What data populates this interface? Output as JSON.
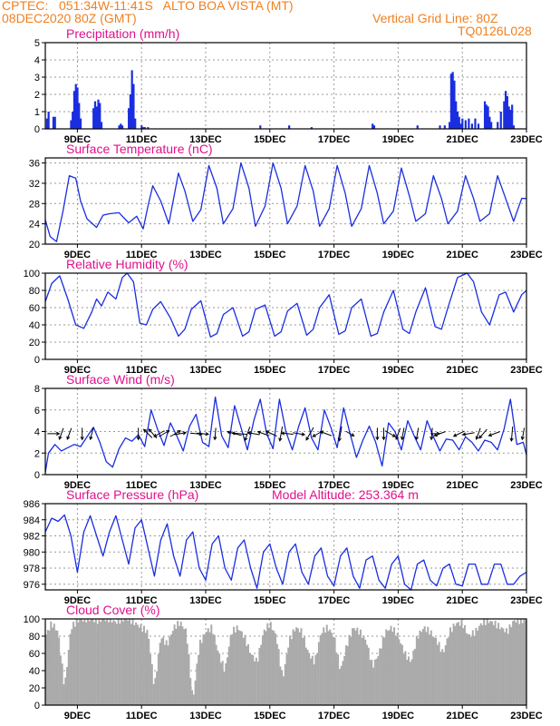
{
  "header": {
    "line1": "CPTEC:   051:34W-11:41S   ALTO BOA VISTA (MT)",
    "line2": "08DEC2020 80Z (GMT)",
    "grid_note": "Vertical Grid Line: 80Z",
    "code": "TQ0126L028",
    "model_altitude": "Model Altitude: 253.364 m"
  },
  "colors": {
    "header": "#f08020",
    "title": "#e0108c",
    "line": "#1a2ee0",
    "cloud": "#aaaaaa",
    "grid": "#999999"
  },
  "x_axis": {
    "range": [
      8,
      23
    ],
    "ticks": [
      9,
      11,
      13,
      15,
      17,
      19,
      21,
      23
    ],
    "tick_labels": [
      "9DEC",
      "11DEC",
      "13DEC",
      "15DEC",
      "17DEC",
      "19DEC",
      "21DEC",
      "23DEC"
    ]
  },
  "chart_data": [
    {
      "type": "bar",
      "title": "Precipitation (mm/h)",
      "ylim": [
        0,
        5
      ],
      "yticks": [
        0,
        1,
        2,
        3,
        4,
        5
      ],
      "x": [
        8.05,
        8.1,
        8.25,
        8.3,
        8.8,
        8.85,
        8.9,
        8.95,
        9.0,
        9.05,
        9.1,
        9.5,
        9.55,
        9.6,
        9.65,
        9.7,
        9.75,
        10.3,
        10.35,
        10.4,
        10.6,
        10.65,
        10.7,
        10.75,
        10.8,
        11.0,
        11.05,
        11.1,
        11.2,
        14.7,
        15.6,
        16.3,
        18.2,
        18.25,
        19.6,
        20.3,
        20.45,
        20.6,
        20.65,
        20.7,
        20.75,
        20.8,
        20.85,
        20.9,
        20.95,
        21.0,
        21.1,
        21.2,
        21.3,
        21.4,
        21.5,
        21.7,
        21.75,
        21.8,
        21.85,
        21.9,
        22.1,
        22.2,
        22.3,
        22.35,
        22.4,
        22.45,
        22.5,
        22.55,
        22.6
      ],
      "values": [
        0.6,
        1.0,
        0.7,
        0.7,
        0.5,
        1.0,
        2.2,
        2.6,
        2.4,
        1.5,
        0.6,
        1.2,
        1.6,
        1.3,
        1.7,
        1.5,
        0.4,
        0.2,
        0.3,
        0.2,
        1.2,
        2.0,
        3.4,
        2.6,
        0.6,
        0.2,
        0.1,
        0.1,
        0.1,
        0.2,
        0.2,
        0.1,
        0.3,
        0.2,
        0.2,
        0.2,
        0.2,
        0.4,
        3.2,
        3.3,
        2.8,
        1.6,
        1.0,
        0.7,
        0.3,
        0.6,
        0.5,
        0.6,
        0.3,
        0.6,
        0.3,
        1.6,
        1.4,
        1.3,
        0.7,
        0.4,
        0.4,
        1.0,
        1.6,
        2.2,
        1.9,
        1.3,
        1.1,
        1.4,
        0.2
      ]
    },
    {
      "type": "line",
      "title": "Surface Temperature (nC)",
      "ylim": [
        20,
        37
      ],
      "yticks": [
        20,
        24,
        28,
        32,
        36
      ],
      "x": [
        8.0,
        8.15,
        8.35,
        8.55,
        8.75,
        8.95,
        9.1,
        9.3,
        9.6,
        9.8,
        10.0,
        10.3,
        10.6,
        10.85,
        11.05,
        11.2,
        11.35,
        11.6,
        11.85,
        12.15,
        12.35,
        12.6,
        12.85,
        13.1,
        13.35,
        13.55,
        13.85,
        14.1,
        14.35,
        14.55,
        14.85,
        15.1,
        15.35,
        15.55,
        15.85,
        16.1,
        16.35,
        16.55,
        16.85,
        17.1,
        17.35,
        17.55,
        17.85,
        18.1,
        18.35,
        18.55,
        18.85,
        19.1,
        19.35,
        19.55,
        19.85,
        20.1,
        20.35,
        20.55,
        20.85,
        21.1,
        21.35,
        21.55,
        21.85,
        22.1,
        22.35,
        22.6,
        22.85,
        23.0
      ],
      "values": [
        24.8,
        21.5,
        20.5,
        26.5,
        33.5,
        33.0,
        28.5,
        25.0,
        23.3,
        25.7,
        26.0,
        26.2,
        24.2,
        25.5,
        23.0,
        27.5,
        31.5,
        28.5,
        24.0,
        34.0,
        30.5,
        24.5,
        26.8,
        35.5,
        31.0,
        24.0,
        27.0,
        36.0,
        31.0,
        23.5,
        27.5,
        36.0,
        31.0,
        24.0,
        27.5,
        35.5,
        30.5,
        23.5,
        27.0,
        35.5,
        30.0,
        23.5,
        27.0,
        35.5,
        30.0,
        24.0,
        26.5,
        35.0,
        29.5,
        24.5,
        26.0,
        33.5,
        29.0,
        24.0,
        26.5,
        33.5,
        29.0,
        24.5,
        26.0,
        33.5,
        29.0,
        24.5,
        29.0,
        29.0
      ]
    },
    {
      "type": "line",
      "title": "Relative Humidity (%)",
      "ylim": [
        0,
        100
      ],
      "yticks": [
        0,
        20,
        40,
        60,
        80,
        100
      ],
      "x": [
        8.0,
        8.2,
        8.45,
        8.7,
        8.95,
        9.2,
        9.45,
        9.6,
        9.75,
        9.95,
        10.2,
        10.4,
        10.55,
        10.75,
        10.95,
        11.15,
        11.35,
        11.6,
        11.9,
        12.15,
        12.35,
        12.55,
        12.85,
        13.15,
        13.35,
        13.55,
        13.85,
        14.15,
        14.35,
        14.55,
        14.85,
        15.15,
        15.35,
        15.55,
        15.85,
        16.15,
        16.35,
        16.55,
        16.85,
        17.15,
        17.35,
        17.55,
        17.85,
        18.15,
        18.35,
        18.55,
        18.85,
        19.15,
        19.35,
        19.55,
        19.85,
        20.15,
        20.35,
        20.55,
        20.85,
        21.15,
        21.35,
        21.6,
        21.85,
        22.15,
        22.35,
        22.6,
        22.85,
        23.0
      ],
      "values": [
        67,
        88,
        97,
        70,
        40,
        36,
        55,
        70,
        62,
        78,
        70,
        95,
        100,
        90,
        42,
        40,
        58,
        67,
        48,
        27,
        35,
        58,
        68,
        26,
        30,
        52,
        60,
        27,
        32,
        58,
        63,
        27,
        32,
        56,
        65,
        28,
        35,
        60,
        75,
        29,
        33,
        60,
        70,
        27,
        30,
        55,
        80,
        35,
        30,
        55,
        83,
        38,
        35,
        60,
        95,
        100,
        90,
        55,
        40,
        75,
        78,
        55,
        75,
        80
      ]
    },
    {
      "type": "line",
      "title": "Surface Wind (m/s)",
      "ylim": [
        0,
        8
      ],
      "yticks": [
        0,
        2,
        4,
        6,
        8
      ],
      "x": [
        8.0,
        8.1,
        8.3,
        8.5,
        8.7,
        8.9,
        9.1,
        9.3,
        9.5,
        9.7,
        9.9,
        10.1,
        10.3,
        10.5,
        10.7,
        10.9,
        11.1,
        11.3,
        11.5,
        11.7,
        11.9,
        12.1,
        12.3,
        12.5,
        12.7,
        12.9,
        13.1,
        13.3,
        13.5,
        13.7,
        13.9,
        14.1,
        14.3,
        14.5,
        14.7,
        14.9,
        15.1,
        15.3,
        15.5,
        15.7,
        15.9,
        16.1,
        16.3,
        16.5,
        16.7,
        16.9,
        17.1,
        17.3,
        17.5,
        17.7,
        17.9,
        18.1,
        18.3,
        18.5,
        18.7,
        18.9,
        19.1,
        19.3,
        19.5,
        19.7,
        19.9,
        20.1,
        20.3,
        20.5,
        20.7,
        20.9,
        21.1,
        21.3,
        21.5,
        21.7,
        21.9,
        22.1,
        22.3,
        22.5,
        22.7,
        22.9,
        23.0
      ],
      "values": [
        0.2,
        2.0,
        2.8,
        2.2,
        2.5,
        2.8,
        2.6,
        3.5,
        4.4,
        3.0,
        1.2,
        0.7,
        2.4,
        3.4,
        3.1,
        3.7,
        2.6,
        6.0,
        4.2,
        2.7,
        4.8,
        3.6,
        2.2,
        4.5,
        5.6,
        3.0,
        2.6,
        7.2,
        3.6,
        2.5,
        6.4,
        4.4,
        2.3,
        5.0,
        7.0,
        3.8,
        2.4,
        7.0,
        4.0,
        2.3,
        4.5,
        6.2,
        3.4,
        2.3,
        6.0,
        4.4,
        2.5,
        6.2,
        3.8,
        1.6,
        3.2,
        4.5,
        3.0,
        0.8,
        4.8,
        4.0,
        2.3,
        5.0,
        3.6,
        2.3,
        5.0,
        3.5,
        2.2,
        3.3,
        3.2,
        2.3,
        3.5,
        3.0,
        2.2,
        3.2,
        3.0,
        2.3,
        4.2,
        7.0,
        2.8,
        3.0,
        1.8
      ]
    },
    {
      "type": "line",
      "title": "Surface Pressure (hPa)",
      "ylim": [
        975.3,
        986
      ],
      "yticks": [
        976,
        978,
        980,
        982,
        984,
        986
      ],
      "x": [
        8.0,
        8.2,
        8.4,
        8.6,
        8.8,
        9.0,
        9.2,
        9.4,
        9.6,
        9.8,
        10.0,
        10.2,
        10.4,
        10.6,
        10.8,
        11.0,
        11.2,
        11.4,
        11.6,
        11.8,
        12.0,
        12.2,
        12.4,
        12.6,
        12.8,
        13.0,
        13.2,
        13.4,
        13.6,
        13.8,
        14.0,
        14.2,
        14.4,
        14.6,
        14.8,
        15.0,
        15.2,
        15.4,
        15.6,
        15.8,
        16.0,
        16.2,
        16.4,
        16.6,
        16.8,
        17.0,
        17.2,
        17.4,
        17.6,
        17.8,
        18.0,
        18.2,
        18.4,
        18.6,
        18.8,
        19.0,
        19.2,
        19.4,
        19.6,
        19.8,
        20.0,
        20.2,
        20.4,
        20.6,
        20.8,
        21.0,
        21.2,
        21.4,
        21.6,
        21.8,
        22.0,
        22.2,
        22.4,
        22.6,
        22.8,
        23.0
      ],
      "values": [
        982.5,
        984.2,
        983.8,
        984.6,
        982.0,
        977.5,
        982.5,
        984.5,
        982.0,
        979.5,
        982.5,
        984.5,
        981.5,
        978.5,
        983.0,
        984.0,
        980.5,
        977.0,
        981.5,
        983.5,
        979.5,
        977.0,
        981.5,
        982.5,
        978.0,
        976.5,
        981.0,
        982.0,
        978.0,
        976.5,
        980.5,
        981.5,
        978.0,
        975.5,
        980.0,
        981.0,
        978.0,
        976.0,
        980.0,
        981.0,
        977.5,
        976.0,
        979.5,
        980.5,
        977.0,
        975.8,
        979.5,
        980.5,
        977.0,
        975.5,
        979.0,
        979.5,
        976.5,
        975.5,
        978.5,
        979.5,
        976.0,
        975.3,
        978.5,
        979.0,
        976.5,
        975.8,
        978.0,
        978.5,
        976.0,
        975.8,
        978.5,
        978.5,
        976.0,
        976.0,
        978.5,
        978.5,
        976.0,
        976.0,
        977.0,
        977.5
      ]
    },
    {
      "type": "area",
      "title": "Cloud Cover (%)",
      "ylim": [
        0,
        100
      ],
      "yticks": [
        0,
        20,
        40,
        60,
        80,
        100
      ],
      "x": [
        8.0,
        8.2,
        8.4,
        8.6,
        8.8,
        9.0,
        9.2,
        9.4,
        9.6,
        9.8,
        10.0,
        10.2,
        10.4,
        10.6,
        10.8,
        11.0,
        11.2,
        11.4,
        11.6,
        11.8,
        12.0,
        12.2,
        12.4,
        12.6,
        12.8,
        13.0,
        13.2,
        13.4,
        13.6,
        13.8,
        14.0,
        14.2,
        14.4,
        14.6,
        14.8,
        15.0,
        15.2,
        15.4,
        15.6,
        15.8,
        16.0,
        16.2,
        16.4,
        16.6,
        16.8,
        17.0,
        17.2,
        17.4,
        17.6,
        17.8,
        18.0,
        18.2,
        18.4,
        18.6,
        18.8,
        19.0,
        19.2,
        19.4,
        19.6,
        19.8,
        20.0,
        20.2,
        20.4,
        20.6,
        20.8,
        21.0,
        21.2,
        21.4,
        21.6,
        21.8,
        22.0,
        22.2,
        22.4,
        22.6,
        22.8,
        23.0
      ],
      "values": [
        80,
        95,
        85,
        20,
        90,
        98,
        100,
        100,
        98,
        100,
        100,
        96,
        100,
        100,
        95,
        90,
        85,
        20,
        80,
        70,
        90,
        96,
        85,
        5,
        70,
        85,
        90,
        60,
        40,
        85,
        90,
        80,
        60,
        50,
        85,
        95,
        80,
        30,
        75,
        90,
        85,
        60,
        50,
        85,
        90,
        80,
        40,
        70,
        90,
        85,
        75,
        45,
        60,
        85,
        90,
        80,
        60,
        50,
        80,
        90,
        85,
        75,
        60,
        85,
        95,
        95,
        80,
        85,
        95,
        98,
        95,
        90,
        85,
        98,
        98,
        98
      ]
    }
  ],
  "wind_arrows": [
    {
      "x": 8.25,
      "dir": 90,
      "speed": 3
    },
    {
      "x": 8.5,
      "dir": 200,
      "speed": 3
    },
    {
      "x": 8.75,
      "dir": 200,
      "speed": 3
    },
    {
      "x": 9.15,
      "dir": 180,
      "speed": 3
    },
    {
      "x": 9.45,
      "dir": 195,
      "speed": 3
    },
    {
      "x": 10.9,
      "dir": 180,
      "speed": 3
    },
    {
      "x": 11.2,
      "dir": 315,
      "speed": 3
    },
    {
      "x": 11.35,
      "dir": 320,
      "speed": 3
    },
    {
      "x": 11.55,
      "dir": 240,
      "speed": 3
    },
    {
      "x": 11.7,
      "dir": 60,
      "speed": 3
    },
    {
      "x": 12.05,
      "dir": 60,
      "speed": 3
    },
    {
      "x": 12.2,
      "dir": 80,
      "speed": 3
    },
    {
      "x": 12.7,
      "dir": 95,
      "speed": 3
    },
    {
      "x": 12.9,
      "dir": 95,
      "speed": 3
    },
    {
      "x": 13.3,
      "dir": 185,
      "speed": 3
    },
    {
      "x": 13.9,
      "dir": 285,
      "speed": 4
    },
    {
      "x": 14.05,
      "dir": 275,
      "speed": 4
    },
    {
      "x": 14.3,
      "dir": 200,
      "speed": 4
    },
    {
      "x": 14.5,
      "dir": 280,
      "speed": 3
    },
    {
      "x": 14.8,
      "dir": 290,
      "speed": 3
    },
    {
      "x": 15.05,
      "dir": 295,
      "speed": 3
    },
    {
      "x": 15.35,
      "dir": 190,
      "speed": 4
    },
    {
      "x": 15.55,
      "dir": 275,
      "speed": 3
    },
    {
      "x": 15.9,
      "dir": 100,
      "speed": 3
    },
    {
      "x": 16.25,
      "dir": 210,
      "speed": 4
    },
    {
      "x": 16.5,
      "dir": 240,
      "speed": 3
    },
    {
      "x": 16.75,
      "dir": 290,
      "speed": 3
    },
    {
      "x": 17.2,
      "dir": 190,
      "speed": 4
    },
    {
      "x": 17.5,
      "dir": 120,
      "speed": 2
    },
    {
      "x": 18.35,
      "dir": 180,
      "speed": 3
    },
    {
      "x": 18.55,
      "dir": 180,
      "speed": 3
    },
    {
      "x": 18.75,
      "dir": 120,
      "speed": 3
    },
    {
      "x": 19.0,
      "dir": 200,
      "speed": 3
    },
    {
      "x": 19.15,
      "dir": 190,
      "speed": 3
    },
    {
      "x": 19.6,
      "dir": 190,
      "speed": 3
    },
    {
      "x": 20.05,
      "dir": 185,
      "speed": 3
    },
    {
      "x": 20.15,
      "dir": 90,
      "speed": 2
    },
    {
      "x": 20.3,
      "dir": 250,
      "speed": 3
    },
    {
      "x": 20.9,
      "dir": 245,
      "speed": 3
    },
    {
      "x": 21.2,
      "dir": 260,
      "speed": 3
    },
    {
      "x": 21.5,
      "dir": 200,
      "speed": 3
    },
    {
      "x": 21.65,
      "dir": 220,
      "speed": 3
    },
    {
      "x": 22.0,
      "dir": 250,
      "speed": 3
    },
    {
      "x": 22.55,
      "dir": 185,
      "speed": 4
    },
    {
      "x": 22.9,
      "dir": 190,
      "speed": 3
    }
  ]
}
